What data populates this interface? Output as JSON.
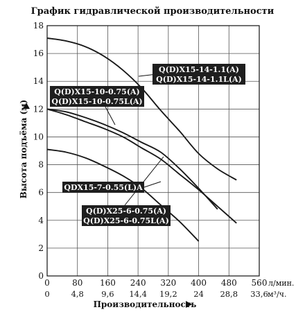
{
  "chart_data": {
    "type": "line",
    "title": "График гидравлической производительности",
    "xlabel": "Производительность",
    "ylabel": "Высота подъёма (м)",
    "x_unit": "л/мин.",
    "x2_unit": "м³/ч.",
    "xlim": [
      0,
      560
    ],
    "ylim": [
      0,
      18
    ],
    "x_ticks": [
      "0",
      "80",
      "160",
      "240",
      "320",
      "400",
      "480",
      "560"
    ],
    "x2_ticks": [
      "0",
      "4,8",
      "9,6",
      "14,4",
      "19,2",
      "24",
      "28,8",
      "33,6"
    ],
    "y_ticks": [
      "0",
      "2",
      "4",
      "6",
      "8",
      "10",
      "12",
      "14",
      "16",
      "18"
    ],
    "grid": true,
    "series": [
      {
        "labels": [
          "Q(D)X15-14-1.1(A)",
          "Q(D)X15-14-1.1L(A)"
        ],
        "x": [
          0,
          50,
          100,
          150,
          200,
          250,
          300,
          350,
          400,
          450,
          500
        ],
        "y": [
          17.1,
          16.9,
          16.5,
          15.8,
          14.8,
          13.5,
          11.9,
          10.4,
          8.8,
          7.7,
          6.9
        ]
      },
      {
        "labels": [
          "Q(D)X15-10-0.75(A)",
          "Q(D)X15-10-0.75L(A)"
        ],
        "x": [
          0,
          50,
          100,
          150,
          200,
          250,
          300,
          350,
          400,
          450
        ],
        "y": [
          12.0,
          11.8,
          11.4,
          10.9,
          10.3,
          9.6,
          8.9,
          7.7,
          6.3,
          4.8
        ]
      },
      {
        "labels": [
          "Q(D)X25-6-0.75(A)",
          "Q(D)X25-6-0.75L(A)"
        ],
        "x": [
          0,
          50,
          100,
          150,
          200,
          250,
          300,
          350,
          400,
          450,
          500
        ],
        "y": [
          12.0,
          11.6,
          11.1,
          10.6,
          10.0,
          9.2,
          8.4,
          7.3,
          6.2,
          5.0,
          3.8
        ]
      },
      {
        "labels": [
          "QDX15-7-0.55(L)A"
        ],
        "x": [
          0,
          50,
          100,
          150,
          200,
          250,
          300,
          350,
          400
        ],
        "y": [
          9.1,
          8.9,
          8.5,
          7.9,
          7.2,
          6.3,
          5.1,
          3.9,
          2.5
        ]
      }
    ]
  }
}
